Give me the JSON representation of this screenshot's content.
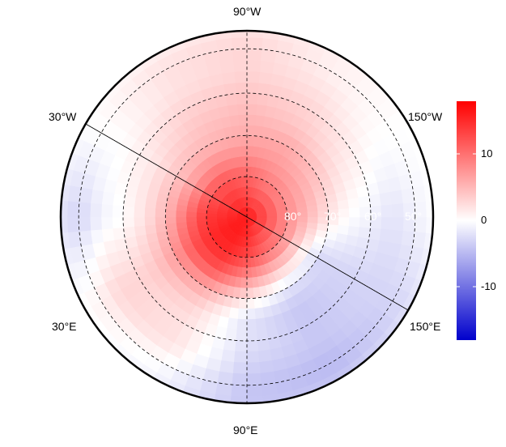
{
  "chart_data": {
    "type": "heatmap",
    "projection": "north polar stereographic",
    "meridian_labels": [
      "90°W",
      "150°W",
      "150°E",
      "90°E",
      "30°E",
      "30°W"
    ],
    "latitude_labels": [
      "80°",
      "70°",
      "60°",
      "50°"
    ],
    "colorbar": {
      "ticks": [
        10,
        0,
        -10
      ],
      "tick_labels": [
        "10",
        "0",
        "-10"
      ],
      "range": [
        -18,
        18
      ],
      "low_color": "#0000cc",
      "mid_color": "#ffffff",
      "high_color": "#ff0000"
    },
    "grid": {
      "lons": [
        0,
        30,
        60,
        90,
        120,
        150,
        180,
        -150,
        -120,
        -90,
        -60,
        -30
      ],
      "lats": [
        90,
        85,
        80,
        75,
        70,
        65,
        60,
        55,
        50,
        45
      ],
      "values": [
        [
          16,
          16,
          16,
          16,
          16,
          16,
          16,
          16,
          16,
          16,
          16,
          16
        ],
        [
          15,
          16,
          16,
          15,
          13,
          12,
          12,
          12,
          12,
          13,
          14,
          14
        ],
        [
          14,
          15,
          15,
          13,
          10,
          8,
          8,
          8,
          9,
          11,
          12,
          12
        ],
        [
          10,
          12,
          12,
          8,
          4,
          2,
          5,
          6,
          7,
          8,
          8,
          7
        ],
        [
          5,
          7,
          6,
          2,
          -2,
          -3,
          2,
          4,
          6,
          6,
          5,
          4
        ],
        [
          2,
          4,
          3,
          -2,
          -4,
          -3,
          0,
          2,
          4,
          5,
          4,
          2
        ],
        [
          0,
          3,
          2,
          -2,
          -4,
          -3,
          -1,
          1,
          3,
          4,
          3,
          1
        ],
        [
          -1,
          3,
          2,
          -3,
          -4,
          -3,
          -2,
          0,
          2,
          3,
          2,
          0
        ],
        [
          -3,
          1,
          0,
          -4,
          -5,
          -3,
          -1,
          0,
          1,
          3,
          2,
          0
        ],
        [
          -2,
          0,
          -1,
          -4,
          -4,
          -2,
          0,
          0,
          1,
          2,
          1,
          0
        ]
      ]
    }
  }
}
